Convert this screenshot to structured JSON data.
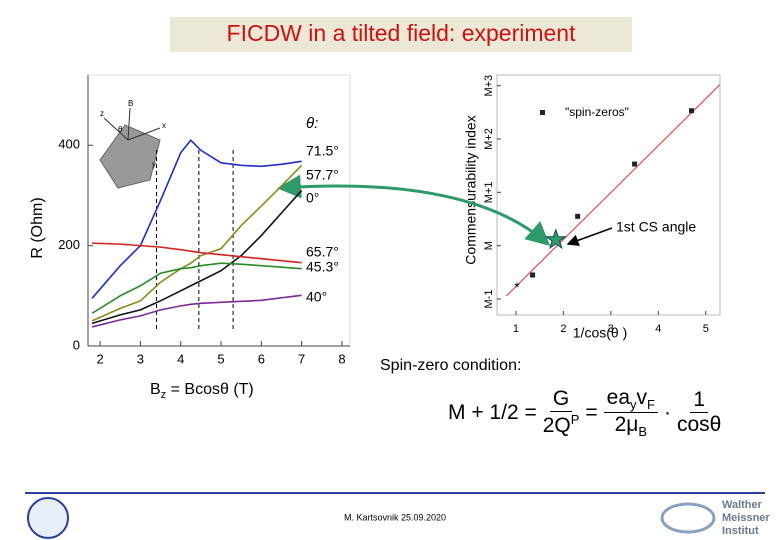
{
  "title": "FICDW in a tilted field: experiment",
  "chart_data": [
    {
      "type": "line",
      "y_label": "R (Ohm)",
      "x_label": [
        "B",
        "z",
        " = Bcosθ  (T)"
      ],
      "legend_title": "θ:",
      "inset_labels": [
        "z",
        "B",
        "θ",
        "x",
        "y"
      ],
      "x": [
        1.8,
        2.5,
        3,
        3.5,
        4,
        4.25,
        4.5,
        5,
        5.5,
        6,
        6.5,
        7
      ],
      "series": [
        {
          "name": "71.5°",
          "color": "#1f2fd0",
          "values": [
            95,
            160,
            200,
            290,
            385,
            410,
            390,
            365,
            360,
            358,
            362,
            368
          ]
        },
        {
          "name": "57.7°",
          "color": "#8a8a1e",
          "values": [
            50,
            75,
            90,
            127,
            154,
            165,
            180,
            194,
            240,
            279,
            319,
            360
          ]
        },
        {
          "name": "0°",
          "color": "#111111",
          "values": [
            45,
            62,
            72,
            90,
            110,
            120,
            130,
            150,
            180,
            220,
            265,
            310
          ]
        },
        {
          "name": "65.7°",
          "color": "#d42222",
          "values": [
            205,
            203,
            200,
            197,
            192,
            189,
            186,
            182,
            178,
            174,
            170,
            166
          ]
        },
        {
          "name": "45.3°",
          "color": "#2a8a2a",
          "values": [
            65,
            100,
            120,
            145,
            154,
            156,
            160,
            165,
            163,
            160,
            157,
            154
          ]
        },
        {
          "name": "40°",
          "color": "#7a2a9a",
          "values": [
            38,
            52,
            60,
            72,
            80,
            83,
            85,
            87,
            89,
            91,
            96,
            101
          ]
        }
      ],
      "markers": [
        3.4,
        4.45,
        5.3
      ],
      "xlim": [
        1.7,
        8.2
      ],
      "ylim": [
        0,
        540
      ],
      "xticks": [
        2,
        3,
        4,
        5,
        6,
        7,
        8
      ],
      "yticks": [
        0,
        200,
        400
      ]
    },
    {
      "type": "scatter",
      "y_label": "Commensurability index",
      "x_label": "1/cos(θ )",
      "legend": "top-left",
      "series": [
        {
          "name": "\"spin-zeros\"",
          "color": "#222222",
          "x": [
            1.35,
            2.3,
            3.5,
            4.7
          ],
          "values": [
            -0.55,
            0.55,
            1.53,
            2.53
          ]
        }
      ],
      "fit": {
        "color": "#e05050",
        "x": [
          0.8,
          5.3
        ],
        "values": [
          -0.94,
          3.02
        ]
      },
      "star": {
        "color": "#2e9a6a",
        "x": 1.84,
        "value": 0.11
      },
      "asterisk": {
        "x": 1.02,
        "value": -0.74
      },
      "annotation": "1st CS angle",
      "xlim": [
        0.6,
        5.3
      ],
      "ylim": [
        -1.3,
        3.2
      ],
      "xticks": [
        1,
        2,
        3,
        4,
        5
      ],
      "yticks": [
        {
          "value": -1,
          "label": "M-1"
        },
        {
          "value": 0,
          "label": "M"
        },
        {
          "value": 1,
          "label": "M+1"
        },
        {
          "value": 2,
          "label": "M+2"
        },
        {
          "value": 3,
          "label": "M+3"
        }
      ]
    }
  ],
  "condition": "Spin-zero condition:",
  "formula": {
    "lhs": "M + 1/2 =",
    "f1_num": "G",
    "f1_den": "2Q",
    "f1_den_sup": "P",
    "eq": "=",
    "f2_num": [
      "ea",
      "y",
      "v",
      "F"
    ],
    "f2_den": [
      "2μ",
      "B"
    ],
    "dot": "·",
    "f3_num": "1",
    "f3_den": "cosθ"
  },
  "footer": "M. Kartsovnik  25.09.2020",
  "logo": [
    "Walther",
    "Meissner",
    "Institut"
  ]
}
